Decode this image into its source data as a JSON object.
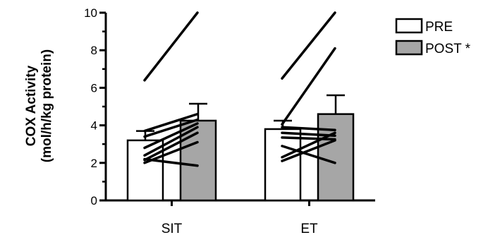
{
  "chart_data": {
    "type": "bar",
    "ylabel_line1": "COX Activity",
    "ylabel_line2": "(mol/h/kg protein)",
    "ylim": [
      0,
      10
    ],
    "yticks": [
      0,
      2,
      4,
      6,
      8,
      10
    ],
    "categories": [
      "SIT",
      "ET"
    ],
    "series": [
      {
        "name": "PRE",
        "values": [
          3.2,
          3.8
        ],
        "errors": [
          0.5,
          0.45
        ],
        "color": "#ffffff"
      },
      {
        "name": "POST *",
        "values": [
          4.25,
          4.6
        ],
        "errors": [
          0.9,
          1.0
        ],
        "color": "#a6a6a6"
      }
    ],
    "individual_lines": {
      "SIT": [
        [
          6.4,
          10.0
        ],
        [
          3.7,
          4.6
        ],
        [
          3.4,
          4.3
        ],
        [
          2.8,
          4.1
        ],
        [
          2.4,
          3.9
        ],
        [
          2.15,
          3.6
        ],
        [
          2.0,
          3.1
        ],
        [
          2.2,
          1.85
        ]
      ],
      "ET": [
        [
          6.5,
          10.0
        ],
        [
          4.05,
          8.1
        ],
        [
          3.9,
          3.75
        ],
        [
          3.6,
          3.45
        ],
        [
          3.35,
          3.25
        ],
        [
          2.3,
          3.6
        ],
        [
          2.1,
          3.2
        ],
        [
          2.9,
          2.0
        ]
      ]
    },
    "legend_position": "top-right",
    "grid": false
  }
}
